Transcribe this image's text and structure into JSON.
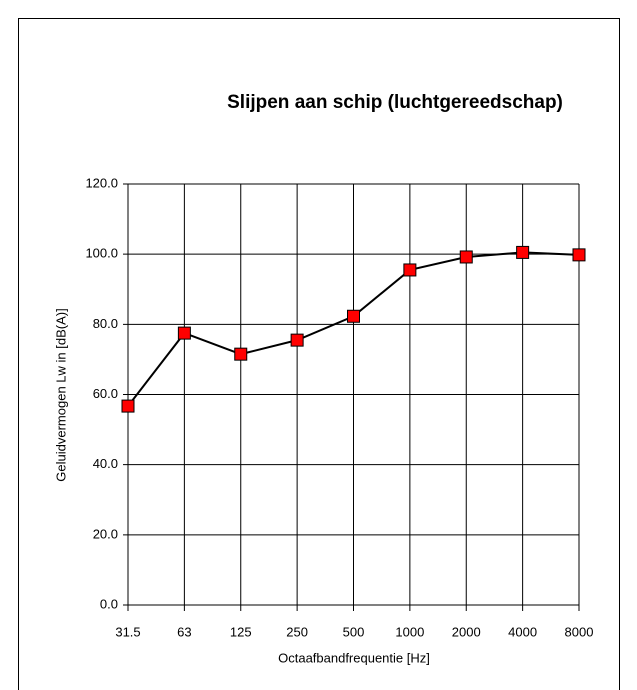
{
  "chart_data": {
    "type": "line",
    "title": "Slijpen aan schip (luchtgereedschap)",
    "x_label": "Octaafbandfrequentie [Hz]",
    "y_label": "Geluidvermogen Lw in  [dB(A)]",
    "categories": [
      "31.5",
      "63",
      "125",
      "250",
      "500",
      "1000",
      "2000",
      "4000",
      "8000"
    ],
    "series": [
      {
        "color": "#ff0000",
        "values": [
          56.7,
          77.5,
          71.5,
          75.5,
          82.3,
          95.5,
          99.2,
          100.5,
          99.8
        ]
      }
    ],
    "ylim": [
      0,
      120
    ],
    "yticks": [
      {
        "value": 0,
        "label": "0.0"
      },
      {
        "value": 20,
        "label": "20.0"
      },
      {
        "value": 40,
        "label": "40.0"
      },
      {
        "value": 60,
        "label": "60.0"
      },
      {
        "value": 80,
        "label": "80.0"
      },
      {
        "value": 100,
        "label": "100.0"
      },
      {
        "value": 120,
        "label": "120.0"
      }
    ],
    "grid": true
  }
}
